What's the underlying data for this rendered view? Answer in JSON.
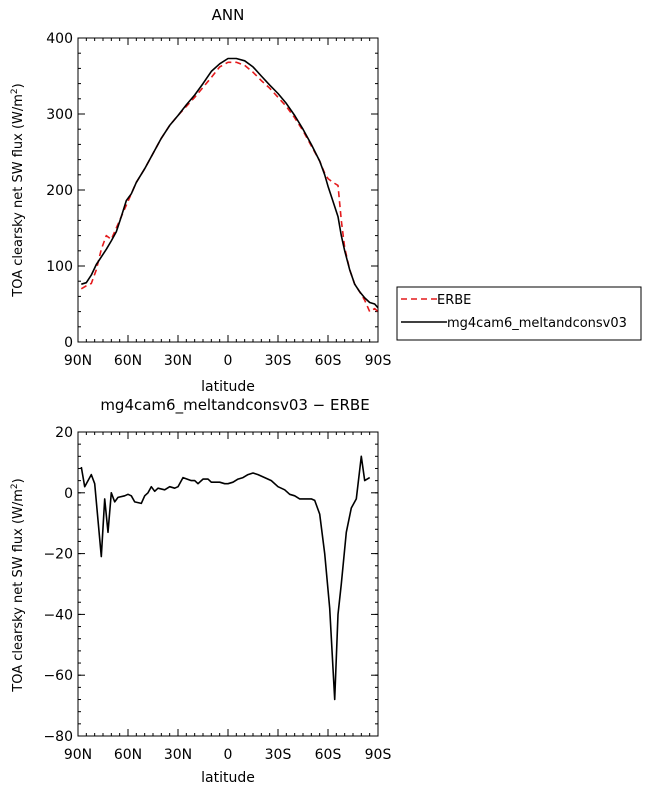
{
  "chart_data": [
    {
      "type": "line",
      "title": "ANN",
      "xlabel": "latitude",
      "ylabel": "TOA clearsky net SW flux (W/m",
      "ylabel_sup": "2",
      "ylabel_end": ")",
      "xlim": [
        -90,
        90
      ],
      "ylim": [
        0,
        400
      ],
      "x_ticks": [
        -90,
        -60,
        -30,
        0,
        30,
        60,
        90
      ],
      "x_tick_labels": [
        "90N",
        "60N",
        "30N",
        "0",
        "30S",
        "60S",
        "90S"
      ],
      "y_ticks": [
        0,
        100,
        200,
        300,
        400
      ],
      "y_tick_labels": [
        "0",
        "100",
        "200",
        "300",
        "400"
      ],
      "legend_position": "right",
      "series": [
        {
          "name": "ERBE",
          "color": "#e41a1c",
          "dash": "dashed",
          "points": [
            [
              -88,
              70
            ],
            [
              -85,
              74
            ],
            [
              -82,
              77
            ],
            [
              -79,
              95
            ],
            [
              -76,
              122
            ],
            [
              -73,
              140
            ],
            [
              -70,
              135
            ],
            [
              -67,
              150
            ],
            [
              -64,
              165
            ],
            [
              -61,
              180
            ],
            [
              -58,
              195
            ],
            [
              -55,
              210
            ],
            [
              -50,
              228
            ],
            [
              -45,
              248
            ],
            [
              -40,
              268
            ],
            [
              -35,
              285
            ],
            [
              -30,
              298
            ],
            [
              -25,
              310
            ],
            [
              -20,
              322
            ],
            [
              -15,
              335
            ],
            [
              -10,
              348
            ],
            [
              -5,
              362
            ],
            [
              0,
              368
            ],
            [
              5,
              368
            ],
            [
              10,
              364
            ],
            [
              15,
              355
            ],
            [
              20,
              344
            ],
            [
              25,
              334
            ],
            [
              30,
              322
            ],
            [
              35,
              310
            ],
            [
              40,
              295
            ],
            [
              45,
              278
            ],
            [
              50,
              258
            ],
            [
              55,
              238
            ],
            [
              58,
              222
            ],
            [
              60,
              215
            ],
            [
              63,
              210
            ],
            [
              66,
              206
            ],
            [
              68,
              160
            ],
            [
              70,
              124
            ],
            [
              73,
              95
            ],
            [
              76,
              76
            ],
            [
              79,
              66
            ],
            [
              82,
              55
            ],
            [
              85,
              40
            ],
            [
              88,
              44
            ],
            [
              90,
              40
            ]
          ]
        },
        {
          "name": "mg4cam6_meltandconsv03",
          "color": "#000000",
          "dash": "solid",
          "points": [
            [
              -88,
              76
            ],
            [
              -85,
              78
            ],
            [
              -82,
              88
            ],
            [
              -79,
              102
            ],
            [
              -76,
              112
            ],
            [
              -73,
              122
            ],
            [
              -70,
              133
            ],
            [
              -67,
              145
            ],
            [
              -64,
              165
            ],
            [
              -61,
              186
            ],
            [
              -58,
              195
            ],
            [
              -55,
              210
            ],
            [
              -50,
              228
            ],
            [
              -45,
              248
            ],
            [
              -40,
              268
            ],
            [
              -35,
              285
            ],
            [
              -30,
              298
            ],
            [
              -25,
              312
            ],
            [
              -20,
              325
            ],
            [
              -15,
              340
            ],
            [
              -10,
              356
            ],
            [
              -5,
              366
            ],
            [
              0,
              373
            ],
            [
              5,
              373
            ],
            [
              10,
              370
            ],
            [
              15,
              362
            ],
            [
              20,
              350
            ],
            [
              25,
              338
            ],
            [
              30,
              327
            ],
            [
              35,
              314
            ],
            [
              40,
              298
            ],
            [
              45,
              280
            ],
            [
              50,
              260
            ],
            [
              55,
              238
            ],
            [
              58,
              220
            ],
            [
              60,
              205
            ],
            [
              63,
              185
            ],
            [
              66,
              165
            ],
            [
              68,
              140
            ],
            [
              70,
              120
            ],
            [
              73,
              95
            ],
            [
              76,
              76
            ],
            [
              79,
              66
            ],
            [
              82,
              58
            ],
            [
              85,
              52
            ],
            [
              88,
              50
            ],
            [
              90,
              45
            ]
          ]
        }
      ]
    },
    {
      "type": "line",
      "title": "mg4cam6_meltandconsv03 − ERBE",
      "xlabel": "latitude",
      "ylabel": "TOA clearsky net SW flux (W/m",
      "ylabel_sup": "2",
      "ylabel_end": ")",
      "xlim": [
        -90,
        90
      ],
      "ylim": [
        -80,
        20
      ],
      "x_ticks": [
        -90,
        -60,
        -30,
        0,
        30,
        60,
        90
      ],
      "x_tick_labels": [
        "90N",
        "60N",
        "30N",
        "0",
        "30S",
        "60S",
        "90S"
      ],
      "y_ticks": [
        -80,
        -60,
        -40,
        -20,
        0,
        20
      ],
      "y_tick_labels": [
        "−80",
        "−60",
        "−40",
        "−20",
        "0",
        "20"
      ],
      "series": [
        {
          "name": "",
          "color": "#000000",
          "dash": "solid",
          "points": [
            [
              -88,
              8.5
            ],
            [
              -86,
              2
            ],
            [
              -82,
              6
            ],
            [
              -80,
              3
            ],
            [
              -78,
              -9
            ],
            [
              -76,
              -21
            ],
            [
              -74,
              -2
            ],
            [
              -72,
              -13
            ],
            [
              -70,
              0
            ],
            [
              -68,
              -3
            ],
            [
              -66,
              -1.5
            ],
            [
              -62,
              -1
            ],
            [
              -60,
              -0.5
            ],
            [
              -58,
              -1
            ],
            [
              -56,
              -3
            ],
            [
              -52,
              -3.5
            ],
            [
              -50,
              -1
            ],
            [
              -48,
              0
            ],
            [
              -46,
              2
            ],
            [
              -44,
              0.5
            ],
            [
              -42,
              1.5
            ],
            [
              -38,
              1
            ],
            [
              -35,
              2
            ],
            [
              -32,
              1.5
            ],
            [
              -30,
              2
            ],
            [
              -27,
              5
            ],
            [
              -22,
              4
            ],
            [
              -20,
              4
            ],
            [
              -18,
              3
            ],
            [
              -15,
              4.5
            ],
            [
              -12,
              4.5
            ],
            [
              -10,
              3.5
            ],
            [
              -5,
              3.5
            ],
            [
              -2,
              3
            ],
            [
              0,
              3
            ],
            [
              3,
              3.5
            ],
            [
              6,
              4.5
            ],
            [
              9,
              5
            ],
            [
              12,
              6
            ],
            [
              15,
              6.5
            ],
            [
              18,
              6
            ],
            [
              22,
              5
            ],
            [
              26,
              4
            ],
            [
              30,
              2
            ],
            [
              34,
              1
            ],
            [
              37,
              -0.5
            ],
            [
              40,
              -1
            ],
            [
              43,
              -2
            ],
            [
              46,
              -2
            ],
            [
              50,
              -2
            ],
            [
              52,
              -2.5
            ],
            [
              55,
              -7
            ],
            [
              58,
              -20
            ],
            [
              61,
              -38
            ],
            [
              64,
              -68
            ],
            [
              66,
              -40
            ],
            [
              68,
              -30
            ],
            [
              71,
              -13
            ],
            [
              74,
              -5
            ],
            [
              77,
              -2
            ],
            [
              80,
              12
            ],
            [
              82,
              4
            ],
            [
              85,
              5
            ]
          ]
        }
      ]
    }
  ]
}
